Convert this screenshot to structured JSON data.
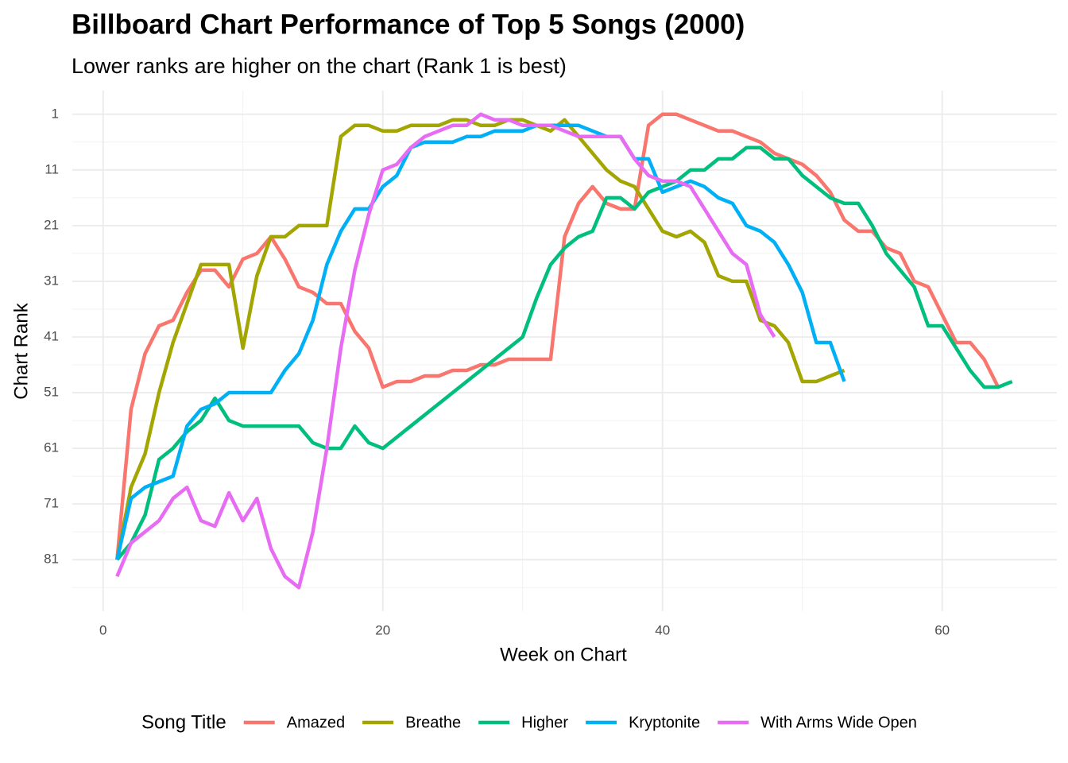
{
  "chart_data": {
    "type": "line",
    "title": "Billboard Chart Performance of Top 5 Songs (2000)",
    "subtitle": "Lower ranks are higher on the chart (Rank 1 is best)",
    "x_label": "Week on Chart",
    "y_label": "Chart Rank",
    "legend_title": "Song Title",
    "legend_position": "bottom",
    "y_reversed": true,
    "grid": true,
    "xlim": [
      -2.2,
      68.2
    ],
    "xticks": [
      0,
      20,
      40,
      60
    ],
    "ylim": [
      -3.25,
      90.25
    ],
    "yticks": [
      1,
      11,
      21,
      31,
      41,
      51,
      61,
      71,
      81
    ],
    "x": [
      1,
      2,
      3,
      4,
      5,
      6,
      7,
      8,
      9,
      10,
      11,
      12,
      13,
      14,
      15,
      16,
      17,
      18,
      19,
      20,
      21,
      22,
      23,
      24,
      25,
      26,
      27,
      28,
      29,
      30,
      31,
      32,
      33,
      34,
      35,
      36,
      37,
      38,
      39,
      40,
      41,
      42,
      43,
      44,
      45,
      46,
      47,
      48,
      49,
      50,
      51,
      52,
      53,
      54,
      55,
      56,
      57,
      58,
      59,
      60,
      61,
      62,
      63,
      64,
      65
    ],
    "series": [
      {
        "name": "Amazed",
        "color": "#F8766D",
        "values": [
          81,
          54,
          44,
          39,
          38,
          33,
          29,
          29,
          32,
          27,
          26,
          23,
          27,
          32,
          33,
          35,
          35,
          40,
          43,
          50,
          49,
          49,
          48,
          48,
          47,
          47,
          46,
          46,
          45,
          45,
          45,
          45,
          23,
          17,
          14,
          17,
          18,
          18,
          3,
          1,
          1,
          2,
          3,
          4,
          4,
          5,
          6,
          8,
          9,
          10,
          12,
          15,
          20,
          22,
          22,
          25,
          26,
          31,
          32,
          37,
          42,
          42,
          45,
          50,
          null
        ]
      },
      {
        "name": "Breathe",
        "color": "#A3A500",
        "values": [
          81,
          68,
          62,
          51,
          42,
          35,
          28,
          28,
          28,
          43,
          30,
          23,
          23,
          21,
          21,
          21,
          5,
          3,
          3,
          4,
          4,
          3,
          3,
          3,
          2,
          2,
          3,
          3,
          2,
          2,
          3,
          4,
          2,
          5,
          8,
          11,
          13,
          14,
          18,
          22,
          23,
          22,
          24,
          30,
          31,
          31,
          38,
          39,
          42,
          49,
          49,
          48,
          47,
          null,
          null,
          null,
          null,
          null,
          null,
          null,
          null,
          null,
          null,
          null,
          null
        ]
      },
      {
        "name": "Higher",
        "color": "#00BF7D",
        "values": [
          81,
          78,
          73,
          63,
          61,
          58,
          56,
          52,
          56,
          57,
          57,
          57,
          57,
          57,
          60,
          61,
          61,
          57,
          60,
          61,
          59,
          57,
          55,
          53,
          51,
          49,
          47,
          45,
          43,
          41,
          34,
          28,
          25,
          23,
          22,
          16,
          16,
          18,
          15,
          14,
          13,
          11,
          11,
          9,
          9,
          7,
          7,
          9,
          9,
          12,
          14,
          16,
          17,
          17,
          21,
          26,
          29,
          32,
          39,
          39,
          43,
          47,
          50,
          50,
          49
        ]
      },
      {
        "name": "Kryptonite",
        "color": "#00B0F6",
        "values": [
          81,
          70,
          68,
          67,
          66,
          57,
          54,
          53,
          51,
          51,
          51,
          51,
          47,
          44,
          38,
          28,
          22,
          18,
          18,
          14,
          12,
          7,
          6,
          6,
          6,
          5,
          5,
          4,
          4,
          4,
          3,
          3,
          3,
          3,
          4,
          5,
          5,
          9,
          9,
          15,
          14,
          13,
          14,
          16,
          17,
          21,
          22,
          24,
          28,
          33,
          42,
          42,
          49,
          null,
          null,
          null,
          null,
          null,
          null,
          null,
          null,
          null,
          null,
          null,
          null
        ]
      },
      {
        "name": "With Arms Wide Open",
        "color": "#E76BF3",
        "values": [
          84,
          78,
          76,
          74,
          70,
          68,
          74,
          75,
          69,
          74,
          70,
          79,
          84,
          86,
          76,
          61,
          43,
          29,
          19,
          11,
          10,
          7,
          5,
          4,
          3,
          3,
          1,
          2,
          2,
          3,
          3,
          3,
          4,
          5,
          5,
          5,
          5,
          9,
          12,
          13,
          13,
          14,
          18,
          22,
          26,
          28,
          37,
          41,
          null,
          null,
          null,
          null,
          null,
          null,
          null,
          null,
          null,
          null,
          null,
          null,
          null,
          null,
          null,
          null,
          null
        ]
      }
    ]
  }
}
